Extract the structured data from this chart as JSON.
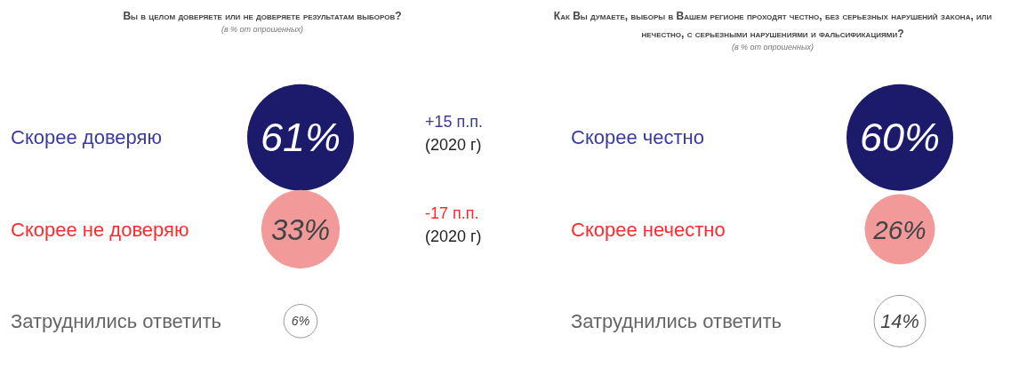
{
  "chart_data": [
    {
      "type": "other",
      "title": "Вы в целом доверяете или не доверяете результатам выборов?",
      "subtitle": "(в % от опрошенных)",
      "categories": [
        "Скорее доверяю",
        "Скорее не доверяю",
        "Затруднились ответить"
      ],
      "values": [
        61,
        33,
        6
      ],
      "value_labels": [
        "61%",
        "33%",
        "6%"
      ],
      "colors": [
        "#1c1a6b",
        "#f29a9a",
        "#ffffff"
      ],
      "annotations": [
        "+15 п.п. (2020 г)",
        "-17 п.п. (2020 г)"
      ]
    },
    {
      "type": "other",
      "title": "Как Вы думаете, выборы в Вашем регионе проходят честно, без серьезных нарушений закона, или нечестно, с серьезными нарушениями и фальсификациями?",
      "subtitle": "(в % от опрошенных)",
      "categories": [
        "Скорее честно",
        "Скорее нечестно",
        "Затруднились ответить"
      ],
      "values": [
        60,
        26,
        14
      ],
      "value_labels": [
        "60%",
        "26%",
        "14%"
      ],
      "colors": [
        "#1c1a6b",
        "#f29a9a",
        "#ffffff"
      ]
    }
  ]
}
